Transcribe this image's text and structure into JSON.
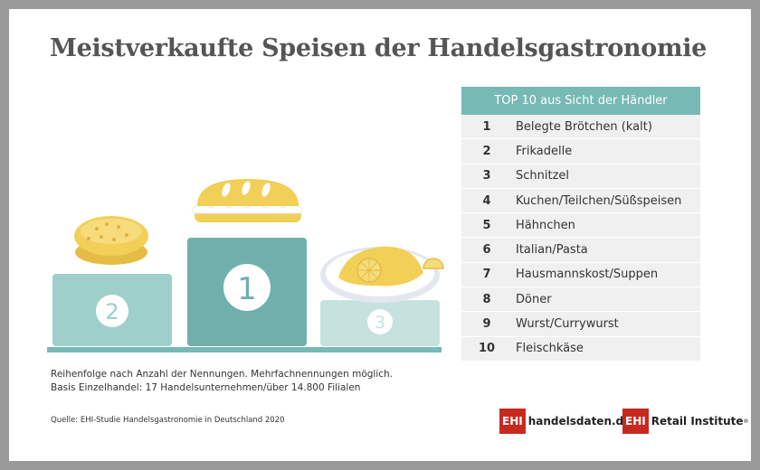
{
  "title": "Meistverkaufte Speisen der Handelsgastronomie",
  "chart_data": {
    "type": "table",
    "header": "TOP 10 aus Sicht der Händler",
    "rows": [
      {
        "rank": "1",
        "item": "Belegte Brötchen (kalt)"
      },
      {
        "rank": "2",
        "item": "Frikadelle"
      },
      {
        "rank": "3",
        "item": "Schnitzel"
      },
      {
        "rank": "4",
        "item": "Kuchen/Teilchen/Süßspeisen"
      },
      {
        "rank": "5",
        "item": "Hähnchen"
      },
      {
        "rank": "6",
        "item": "Italian/Pasta"
      },
      {
        "rank": "7",
        "item": "Hausmannskost/Suppen"
      },
      {
        "rank": "8",
        "item": "Döner"
      },
      {
        "rank": "9",
        "item": "Wurst/Currywurst"
      },
      {
        "rank": "10",
        "item": "Fleischkäse"
      }
    ],
    "podium": [
      {
        "label": "1",
        "rank": 1,
        "depicts": "sandwich-icon"
      },
      {
        "label": "2",
        "rank": 2,
        "depicts": "frikadelle-icon"
      },
      {
        "label": "3",
        "rank": 3,
        "depicts": "schnitzel-icon"
      }
    ]
  },
  "notes": [
    "Reihenfolge nach Anzahl der Nennungen. Mehrfachnennungen möglich.",
    "Basis Einzelhandel: 17 Handelsunternehmen/über 14.800 Filialen"
  ],
  "source": "Quelle: EHI-Studie Handelsgastronomie in Deutschland 2020",
  "brands": [
    {
      "badge": "EHI",
      "name": "handelsdaten.de"
    },
    {
      "badge": "EHI",
      "name": "Retail Institute",
      "mark": "®"
    }
  ],
  "colors": {
    "accent": "#77b9b4",
    "podium1": "#6fb0ac",
    "podium2": "#9fcfcb",
    "podium3": "#c5e2df",
    "food": "#f2cf57",
    "brand": "#c62a1f"
  }
}
